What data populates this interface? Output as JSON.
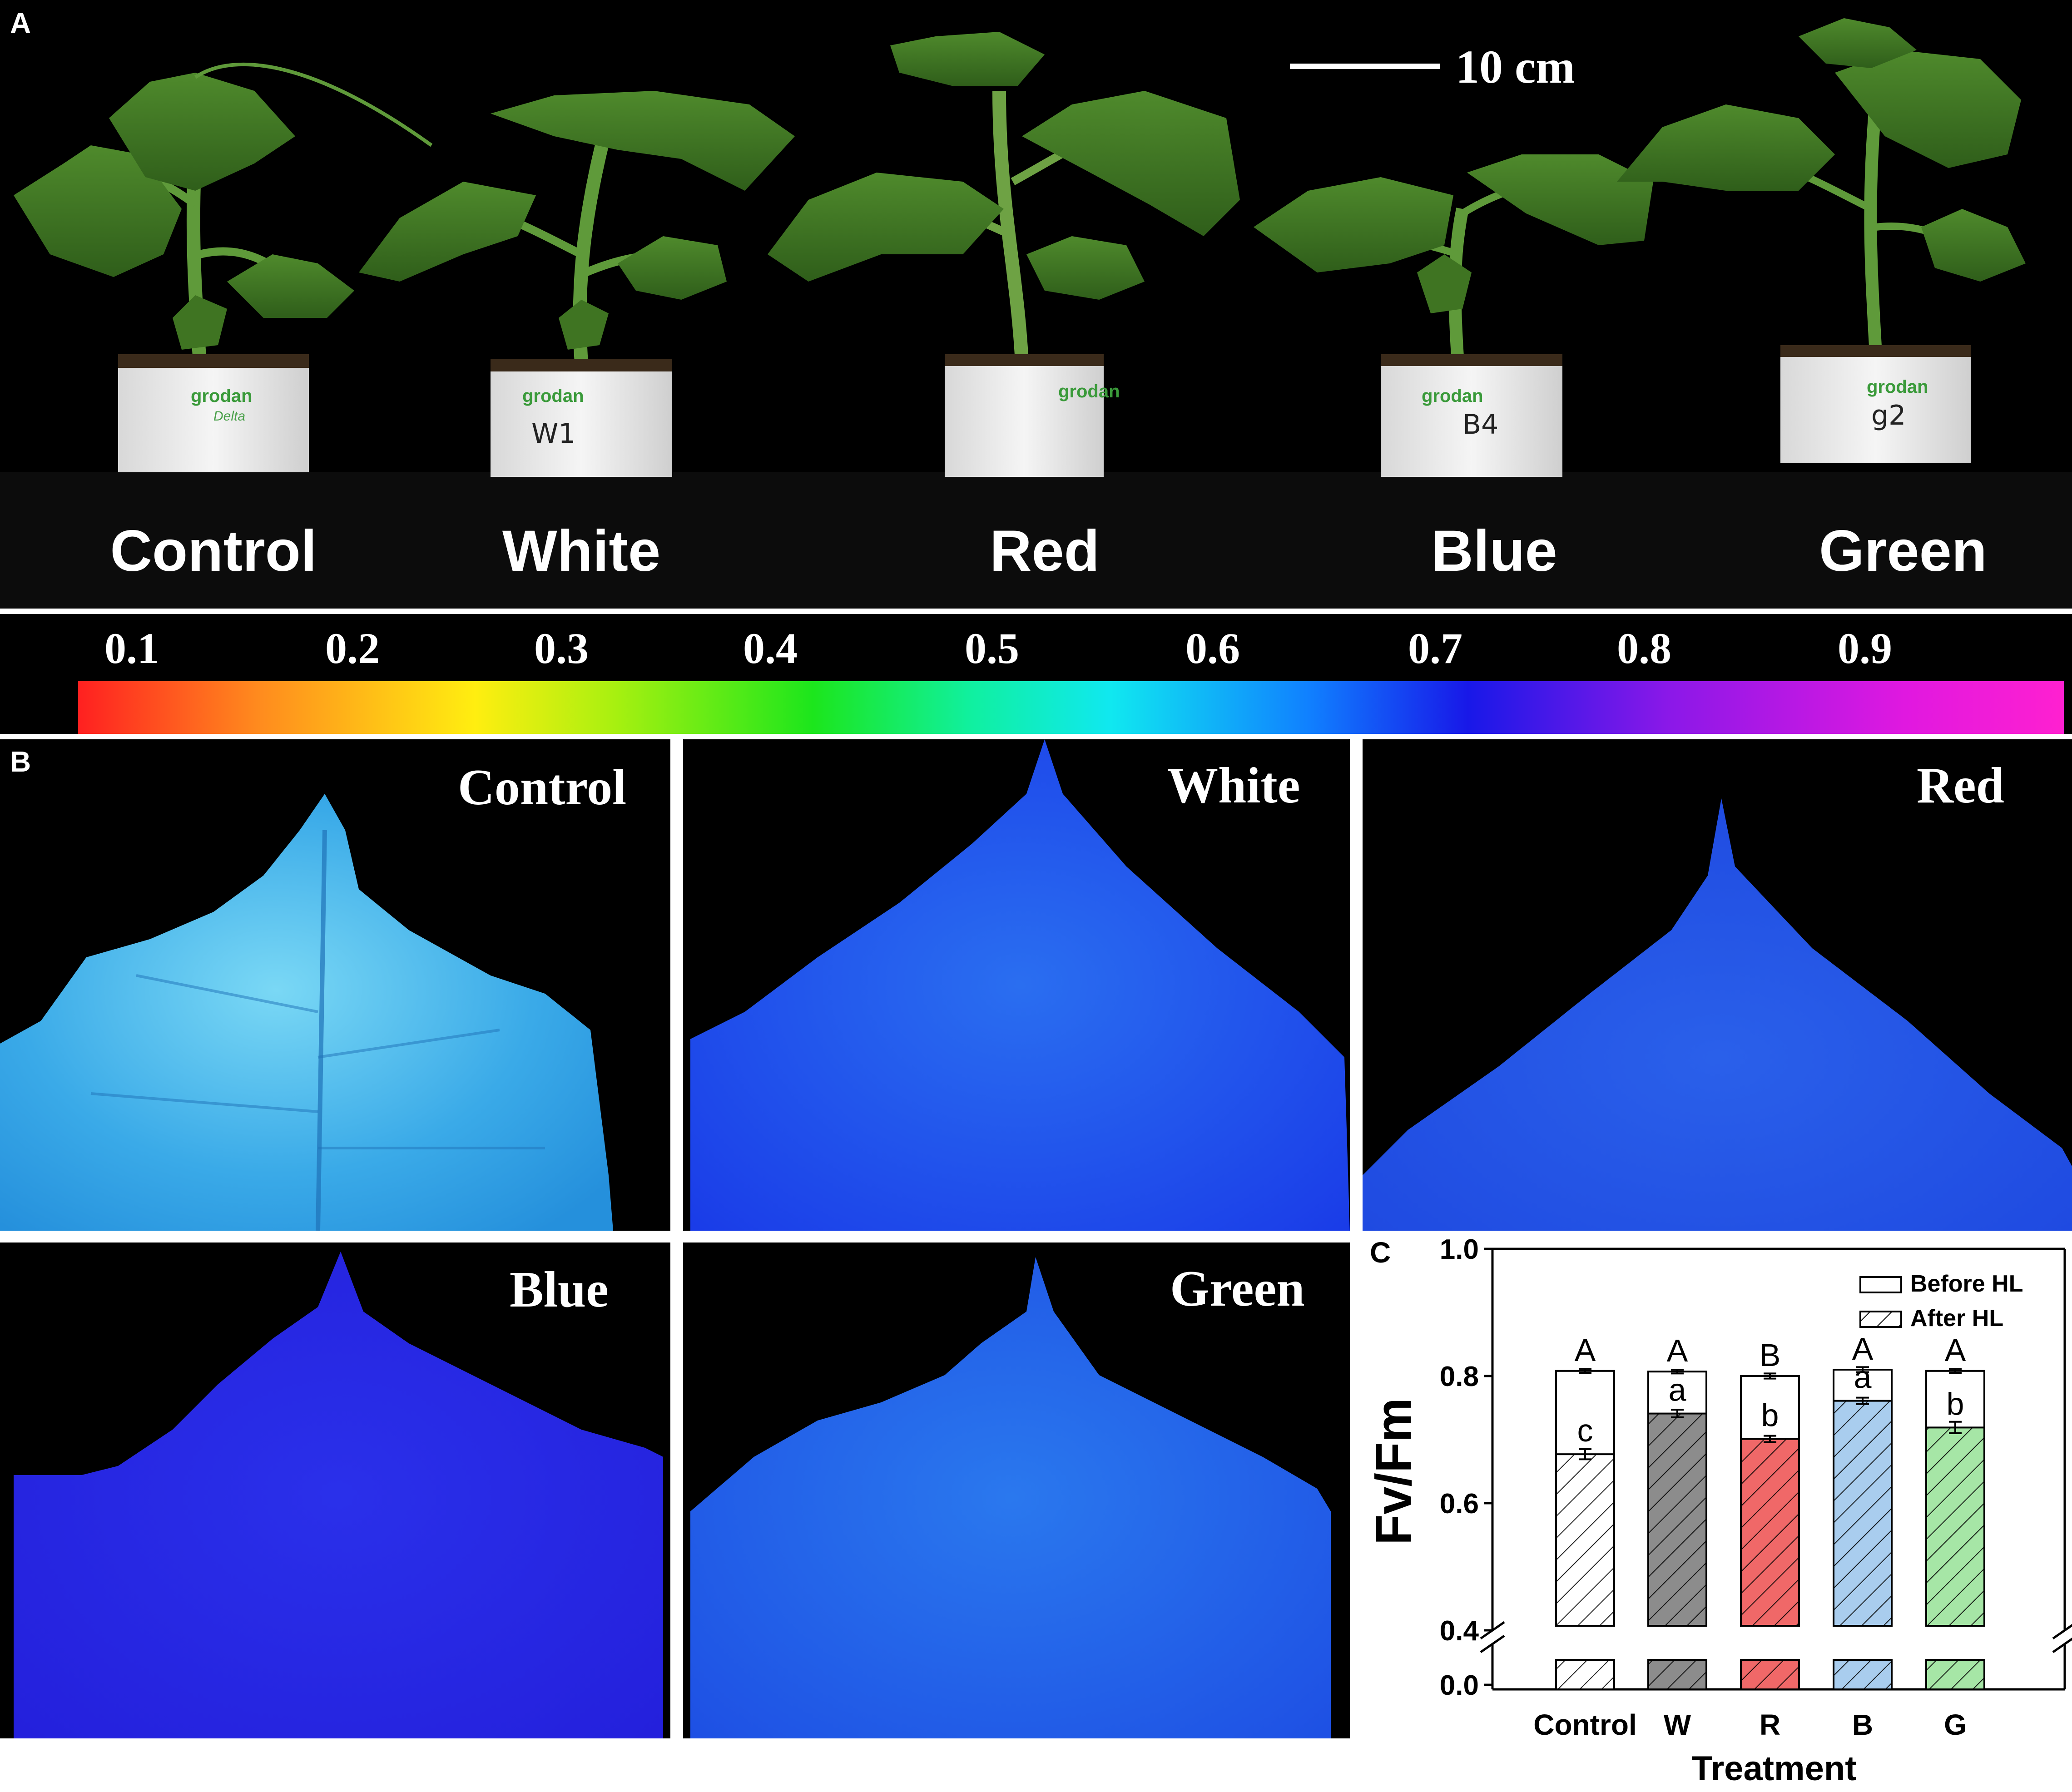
{
  "panel_a": {
    "letter": "A",
    "scale_bar": "10 cm",
    "labels": [
      "Control",
      "White",
      "Red",
      "Blue",
      "Green"
    ],
    "pot_brand": "grodan",
    "pot_sub": "Delta",
    "pot_marks": [
      "",
      "W1",
      "",
      "B4",
      "g2"
    ]
  },
  "colorbar": {
    "ticks": [
      "0.1",
      "0.2",
      "0.3",
      "0.4",
      "0.5",
      "0.6",
      "0.7",
      "0.8",
      "0.9"
    ]
  },
  "panel_b": {
    "letter": "B",
    "labels": [
      "Control",
      "White",
      "Red",
      "Blue",
      "Green"
    ]
  },
  "panel_c": {
    "letter": "C",
    "legend": [
      "Before HL",
      "After HL"
    ]
  },
  "chart_data": {
    "type": "bar",
    "categories": [
      "Control",
      "W",
      "R",
      "B",
      "G"
    ],
    "xlabel": "Treatment",
    "ylabel": "Fv/Fm",
    "ylim": [
      0.0,
      1.0
    ],
    "axis_break": [
      0.0,
      0.4
    ],
    "yticks": [
      "0.0",
      "0.4",
      "0.6",
      "0.8",
      "1.0"
    ],
    "series": [
      {
        "name": "Before HL",
        "values": [
          0.808,
          0.807,
          0.8,
          0.81,
          0.808
        ],
        "errors": [
          0.003,
          0.003,
          0.004,
          0.004,
          0.003
        ],
        "letters": [
          "A",
          "A",
          "B",
          "A",
          "A"
        ]
      },
      {
        "name": "After HL",
        "values": [
          0.677,
          0.741,
          0.701,
          0.761,
          0.719
        ],
        "errors": [
          0.008,
          0.006,
          0.005,
          0.005,
          0.009
        ],
        "letters": [
          "c",
          "a",
          "b",
          "a",
          "b"
        ]
      }
    ],
    "bar_colors": [
      "#ffffff",
      "#8c8c8c",
      "#f06868",
      "#a9cdee",
      "#a6e6a6"
    ],
    "legend_position": "top-right"
  }
}
